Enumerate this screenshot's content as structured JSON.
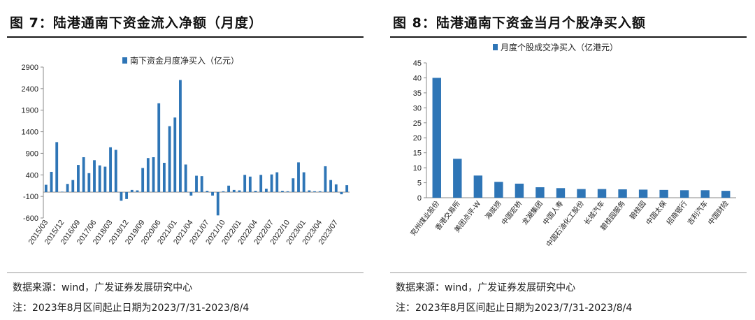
{
  "left": {
    "title": "图 7：陆港通南下资金流入净额（月度）",
    "source": "数据来源：wind，广发证券发展研究中心",
    "note": "注：2023年8月区间起止日期为2023/7/31-2023/8/4",
    "chart_data": {
      "type": "bar",
      "series": [
        {
          "name": "南下资金月度净买入（亿元）",
          "color": "#2E75B6"
        }
      ],
      "ylim": [
        -600,
        2900
      ],
      "yticks": [
        -600,
        -100,
        400,
        900,
        1400,
        1900,
        2400,
        2900
      ],
      "xtick_labels": [
        "2015/03",
        "2015/12",
        "2016/09",
        "2017/06",
        "2018/03",
        "2018/12",
        "2019/09",
        "2020/06",
        "2021/01",
        "2021/04",
        "2021/07",
        "2021/10",
        "2022/01",
        "2022/04",
        "2022/07",
        "2022/10",
        "2023/01",
        "2023/04",
        "2023/07"
      ],
      "values": [
        170,
        470,
        1160,
        10,
        190,
        280,
        630,
        810,
        440,
        740,
        620,
        590,
        1040,
        980,
        -200,
        -160,
        50,
        40,
        560,
        790,
        810,
        2060,
        680,
        1530,
        1730,
        2600,
        640,
        -80,
        380,
        370,
        30,
        -80,
        -540,
        20,
        150,
        50,
        40,
        400,
        360,
        30,
        400,
        80,
        410,
        460,
        30,
        20,
        320,
        690,
        460,
        40,
        20,
        20,
        600,
        280,
        180,
        -50,
        160
      ]
    }
  },
  "right": {
    "title": "图 8：陆港通南下资金当月个股净买入额",
    "source": "数据来源：wind，广发证券发展研究中心",
    "note": "注：2023年8月区间起止日期为2023/7/31-2023/8/4",
    "chart_data": {
      "type": "bar",
      "series": [
        {
          "name": "月度个股成交净买入（亿港元）",
          "color": "#2E75B6"
        }
      ],
      "categories": [
        "兖州煤业股份",
        "香港交易所",
        "美团点评-W",
        "海底捞",
        "中国宏桥",
        "龙湖集团",
        "中国人寿",
        "中国石油化工股份",
        "长城汽车",
        "碧桂园服务",
        "碧桂园",
        "中国太保",
        "招商银行",
        "吉利汽车",
        "中国财险"
      ],
      "values": [
        40.0,
        13.0,
        7.4,
        5.3,
        4.7,
        3.5,
        3.2,
        2.9,
        2.9,
        2.8,
        2.7,
        2.6,
        2.5,
        2.5,
        2.3
      ],
      "ylim": [
        0,
        45
      ],
      "yticks": [
        0,
        5,
        10,
        15,
        20,
        25,
        30,
        35,
        40,
        45
      ]
    }
  }
}
